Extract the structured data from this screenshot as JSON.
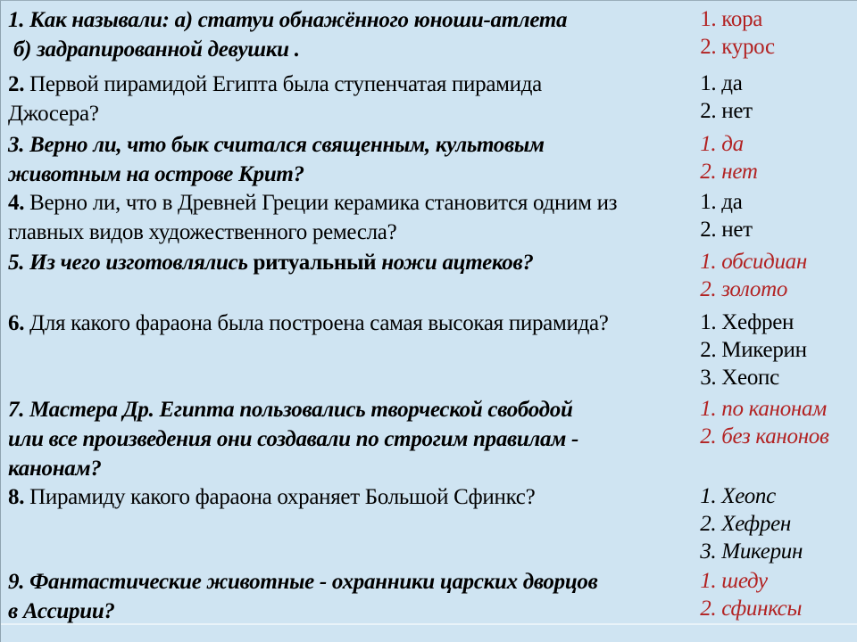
{
  "page": {
    "colors": {
      "background": "#cfe4f2",
      "text": "#000000",
      "answer_red": "#b22222"
    }
  },
  "quiz": {
    "rows": [
      {
        "number": "1",
        "question_lines": [
          [
            {
              "text": "1. Как называли: а) статуи обнажённого юноши-атлета",
              "bold": true,
              "italic": true
            }
          ],
          [
            {
              "text": " б) задрапированной девушки .",
              "bold": true,
              "italic": true
            }
          ]
        ],
        "answers": [
          "1. кора",
          "2. курос"
        ],
        "answers_color": "red",
        "answers_italic": false
      },
      {
        "number": "2",
        "question_lines": [
          [
            {
              "text": "2.",
              "bold": true,
              "italic": false
            },
            {
              "text": " Первой пирамидой Египта была ступенчатая пирамида",
              "bold": false,
              "italic": false
            }
          ],
          [
            {
              "text": "Джосера?",
              "bold": false,
              "italic": false
            }
          ]
        ],
        "answers": [
          "1. да",
          "2. нет"
        ],
        "answers_color": "black",
        "answers_italic": false
      },
      {
        "number": "3",
        "question_lines": [
          [
            {
              "text": "3. Верно ли, что бык считался священным, культовым",
              "bold": true,
              "italic": true
            }
          ],
          [
            {
              "text": "животным на острове Крит?",
              "bold": true,
              "italic": true
            }
          ]
        ],
        "answers": [
          "1. да",
          "2. нет"
        ],
        "answers_color": "red",
        "answers_italic": true
      },
      {
        "number": "4",
        "question_lines": [
          [
            {
              "text": "4.",
              "bold": true,
              "italic": false
            },
            {
              "text": " Верно ли, что в Древней Греции керамика становится одним из",
              "bold": false,
              "italic": false
            }
          ],
          [
            {
              "text": "главных видов художественного ремесла?",
              "bold": false,
              "italic": false
            }
          ]
        ],
        "answers": [
          "1. да",
          "2. нет"
        ],
        "answers_color": "black",
        "answers_italic": false
      },
      {
        "number": "5",
        "question_lines": [
          [
            {
              "text": "5. Из чего изготовлялись ",
              "bold": true,
              "italic": true
            },
            {
              "text": "ритуальный",
              "bold": true,
              "italic": false
            },
            {
              "text": " ножи ацтеков?",
              "bold": true,
              "italic": true
            }
          ]
        ],
        "answers": [
          "1. обсидиан",
          "2. золото"
        ],
        "answers_color": "red",
        "answers_italic": true
      },
      {
        "number": "6",
        "question_lines": [
          [
            {
              "text": "6.",
              "bold": true,
              "italic": false
            },
            {
              "text": " Для какого фараона была построена самая высокая пирамида?",
              "bold": false,
              "italic": false
            }
          ]
        ],
        "answers": [
          "1. Хефрен",
          "2. Микерин",
          "3. Хеопс"
        ],
        "answers_color": "black",
        "answers_italic": false
      },
      {
        "number": "7",
        "question_lines": [
          [
            {
              "text": "7. Мастера Др. Египта пользовались творческой свободой",
              "bold": true,
              "italic": true
            }
          ],
          [
            {
              "text": "или все произведения они создавали по строгим правилам -",
              "bold": true,
              "italic": true
            }
          ],
          [
            {
              "text": "канонам?",
              "bold": true,
              "italic": true
            }
          ]
        ],
        "answers": [
          "1. по канонам",
          "2. без канонов"
        ],
        "answers_color": "red",
        "answers_italic": true
      },
      {
        "number": "8",
        "question_lines": [
          [
            {
              "text": "8.",
              "bold": true,
              "italic": false
            },
            {
              "text": " Пирамиду какого фараона охраняет Большой Сфинкс?",
              "bold": false,
              "italic": false
            }
          ]
        ],
        "answers": [
          "1. Хеопс",
          "2. Хефрен",
          "3. Микерин"
        ],
        "answers_color": "black",
        "answers_italic": true
      },
      {
        "number": "9",
        "question_lines": [
          [
            {
              "text": "9. Фантастические животные - охранники царских дворцов",
              "bold": true,
              "italic": true
            }
          ],
          [
            {
              "text": "в Ассирии?",
              "bold": true,
              "italic": true
            }
          ]
        ],
        "answers": [
          "1. шеду",
          "2. сфинксы"
        ],
        "answers_color": "red",
        "answers_italic": true
      }
    ]
  }
}
